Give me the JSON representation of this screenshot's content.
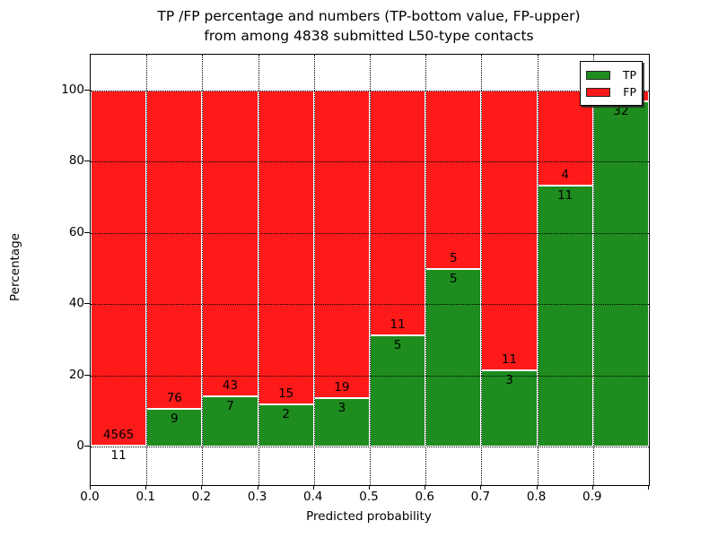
{
  "title": {
    "line1": "TP /FP percentage and numbers (TP-bottom value, FP-upper)",
    "line2": "from among 4838 submitted L50-type contacts"
  },
  "axes": {
    "xlabel": "Predicted probability",
    "ylabel": "Percentage",
    "ytick_labels": [
      "0",
      "20",
      "40",
      "60",
      "80",
      "100"
    ],
    "ytick_values": [
      0,
      20,
      40,
      60,
      80,
      100
    ],
    "xtick_labels": [
      "0.0",
      "0.1",
      "0.2",
      "0.3",
      "0.4",
      "0.5",
      "0.6",
      "0.7",
      "0.8",
      "0.9"
    ],
    "ylim": [
      -10.8,
      110.1
    ],
    "xlim": [
      0.0,
      1.0
    ],
    "grid": "dotted black, horizontal at yticks and vertical at xticks"
  },
  "legend": {
    "position": "upper right",
    "items": [
      {
        "label": "TP",
        "color": "#1e8c1e"
      },
      {
        "label": "FP",
        "color": "#ff1a1a"
      }
    ]
  },
  "colors": {
    "tp": "#1e8c1e",
    "fp": "#ff1a1a",
    "bar_edge": "#ffffff",
    "background": "#ffffff",
    "text": "#000000"
  },
  "chart_data": {
    "type": "bar",
    "stacked": true,
    "normalized": "each bin scaled to 100%",
    "title": "TP /FP percentage and numbers (TP-bottom value, FP-upper) from among 4838 submitted L50-type contacts",
    "xlabel": "Predicted probability",
    "ylabel": "Percentage",
    "total_contacts": 4838,
    "bin_edges": [
      0.0,
      0.1,
      0.2,
      0.3,
      0.4,
      0.5,
      0.6,
      0.7,
      0.8,
      0.9,
      1.0
    ],
    "categories": [
      "0.0-0.1",
      "0.1-0.2",
      "0.2-0.3",
      "0.3-0.4",
      "0.4-0.5",
      "0.5-0.6",
      "0.6-0.7",
      "0.7-0.8",
      "0.8-0.9",
      "0.9-1.0"
    ],
    "series": [
      {
        "name": "TP",
        "counts": [
          11,
          9,
          7,
          2,
          3,
          5,
          5,
          3,
          11,
          32
        ],
        "pct": [
          0.24,
          10.59,
          14.0,
          11.76,
          13.64,
          31.25,
          50.0,
          21.43,
          73.33,
          96.97
        ]
      },
      {
        "name": "FP",
        "counts": [
          4565,
          76,
          43,
          15,
          19,
          11,
          5,
          11,
          4,
          1
        ],
        "pct": [
          99.76,
          89.41,
          86.0,
          88.24,
          86.36,
          68.75,
          50.0,
          78.57,
          26.67,
          3.03
        ]
      }
    ],
    "bar_labels": {
      "fp_labels": [
        "4565",
        "76",
        "43",
        "15",
        "19",
        "11",
        "5",
        "11",
        "4",
        ""
      ],
      "tp_labels": [
        "11",
        "9",
        "7",
        "2",
        "3",
        "5",
        "5",
        "3",
        "11",
        "32"
      ],
      "note_fp_last_label": "hidden behind legend"
    },
    "legend_entries": [
      "TP",
      "FP"
    ]
  }
}
